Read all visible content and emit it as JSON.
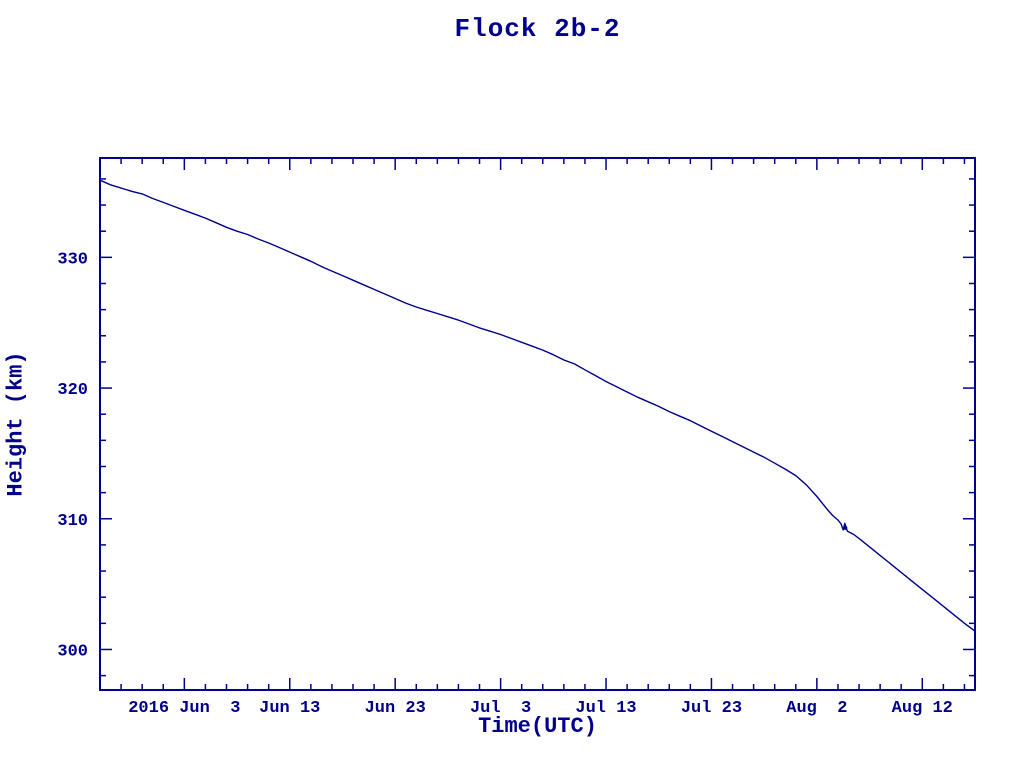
{
  "chart_data": {
    "type": "line",
    "title": "Flock 2b-2",
    "xlabel": "Time(UTC)",
    "ylabel": "Height (km)",
    "legend": "none",
    "grid": false,
    "axis_color": "#00008b",
    "line_color": "#00008b",
    "text_color": "#00008b",
    "background_color": "#ffffff",
    "xlim_days": [
      0,
      83
    ],
    "x_day0_date": "2016-05-26",
    "ylim": [
      296.9,
      337.6
    ],
    "y_ticks": [
      300,
      310,
      320,
      330
    ],
    "y_minor_step": 2,
    "x_minor_step": 2,
    "x_ticks": [
      {
        "day": 8,
        "label": "2016 Jun  3"
      },
      {
        "day": 18,
        "label": "Jun 13"
      },
      {
        "day": 28,
        "label": "Jun 23"
      },
      {
        "day": 38,
        "label": "Jul  3"
      },
      {
        "day": 48,
        "label": "Jul 13"
      },
      {
        "day": 58,
        "label": "Jul 23"
      },
      {
        "day": 68,
        "label": "Aug  2"
      },
      {
        "day": 78,
        "label": "Aug 12"
      }
    ],
    "glitch_marker": [
      70.7,
      309.3
    ],
    "series": [
      {
        "name": "satellite-height",
        "points": [
          [
            0,
            335.9
          ],
          [
            1,
            335.55
          ],
          [
            2,
            335.3
          ],
          [
            3,
            335.05
          ],
          [
            4,
            334.85
          ],
          [
            5,
            334.5
          ],
          [
            6,
            334.2
          ],
          [
            7,
            333.9
          ],
          [
            8,
            333.6
          ],
          [
            9,
            333.3
          ],
          [
            10,
            333.0
          ],
          [
            11,
            332.65
          ],
          [
            12,
            332.3
          ],
          [
            13,
            332.0
          ],
          [
            14,
            331.75
          ],
          [
            15,
            331.4
          ],
          [
            16,
            331.1
          ],
          [
            17,
            330.75
          ],
          [
            18,
            330.4
          ],
          [
            19,
            330.05
          ],
          [
            20,
            329.7
          ],
          [
            21,
            329.3
          ],
          [
            22,
            328.95
          ],
          [
            23,
            328.6
          ],
          [
            24,
            328.25
          ],
          [
            25,
            327.9
          ],
          [
            26,
            327.55
          ],
          [
            27,
            327.2
          ],
          [
            28,
            326.85
          ],
          [
            29,
            326.5
          ],
          [
            30,
            326.2
          ],
          [
            31,
            325.95
          ],
          [
            32,
            325.7
          ],
          [
            33,
            325.45
          ],
          [
            34,
            325.2
          ],
          [
            35,
            324.9
          ],
          [
            36,
            324.6
          ],
          [
            37,
            324.35
          ],
          [
            38,
            324.1
          ],
          [
            39,
            323.8
          ],
          [
            40,
            323.5
          ],
          [
            41,
            323.2
          ],
          [
            42,
            322.9
          ],
          [
            43,
            322.55
          ],
          [
            44,
            322.15
          ],
          [
            45,
            321.85
          ],
          [
            46,
            321.4
          ],
          [
            47,
            320.95
          ],
          [
            48,
            320.5
          ],
          [
            49,
            320.1
          ],
          [
            50,
            319.7
          ],
          [
            51,
            319.3
          ],
          [
            52,
            318.95
          ],
          [
            53,
            318.6
          ],
          [
            54,
            318.2
          ],
          [
            55,
            317.85
          ],
          [
            56,
            317.5
          ],
          [
            57,
            317.1
          ],
          [
            58,
            316.7
          ],
          [
            59,
            316.3
          ],
          [
            60,
            315.9
          ],
          [
            61,
            315.5
          ],
          [
            62,
            315.1
          ],
          [
            63,
            314.7
          ],
          [
            64,
            314.25
          ],
          [
            65,
            313.8
          ],
          [
            66,
            313.3
          ],
          [
            67,
            312.6
          ],
          [
            68,
            311.7
          ],
          [
            69,
            310.7
          ],
          [
            69.5,
            310.25
          ],
          [
            70,
            309.9
          ],
          [
            70.3,
            309.6
          ],
          [
            70.5,
            309.15
          ],
          [
            70.65,
            309.65
          ],
          [
            70.9,
            309.05
          ],
          [
            71.5,
            308.8
          ],
          [
            72,
            308.5
          ],
          [
            73,
            307.85
          ],
          [
            74,
            307.2
          ],
          [
            75,
            306.55
          ],
          [
            76,
            305.9
          ],
          [
            77,
            305.25
          ],
          [
            78,
            304.6
          ],
          [
            79,
            303.95
          ],
          [
            80,
            303.3
          ],
          [
            81,
            302.65
          ],
          [
            82,
            302.0
          ],
          [
            83,
            301.4
          ]
        ]
      }
    ]
  }
}
